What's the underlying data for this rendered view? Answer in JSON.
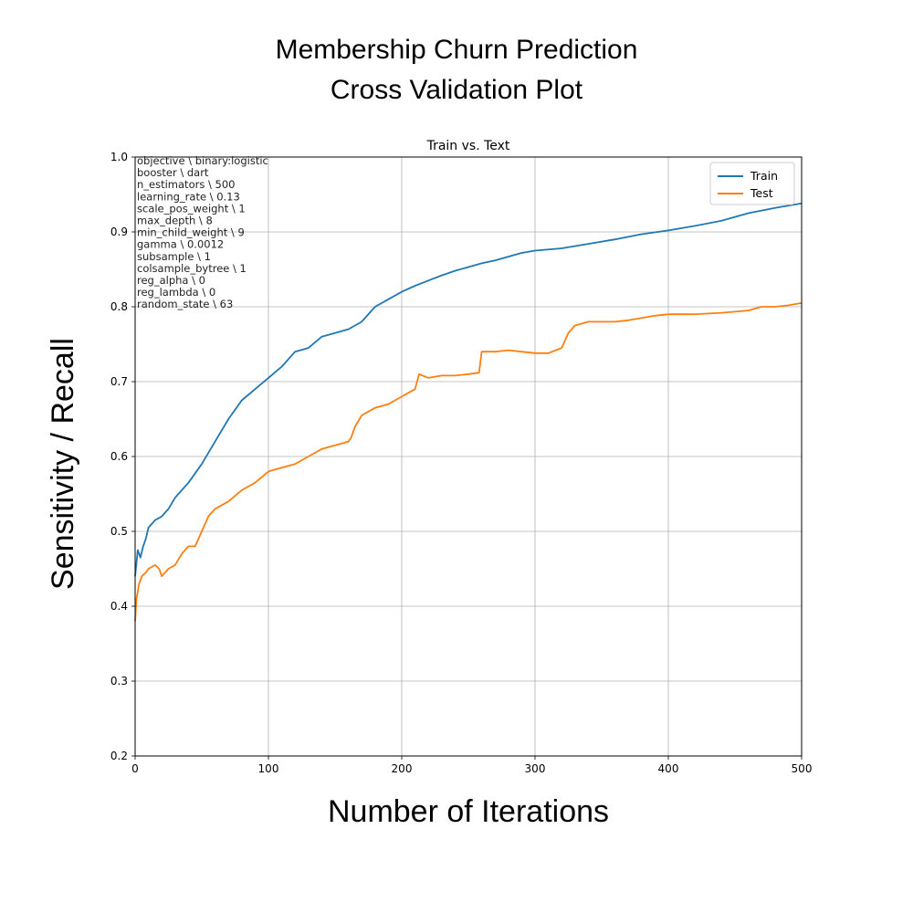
{
  "chart_data": {
    "type": "line",
    "title": "Membership  Churn  Prediction",
    "title_line2": "Cross Validation Plot",
    "subtitle": "Train vs. Text",
    "xlabel": "Number   of   Iterations",
    "ylabel": "Sensitivity  /  Recall",
    "xlim": [
      0,
      500
    ],
    "ylim": [
      0.2,
      1.0
    ],
    "x_ticks": [
      0,
      100,
      200,
      300,
      400,
      500
    ],
    "y_ticks": [
      0.2,
      0.3,
      0.4,
      0.5,
      0.6,
      0.7,
      0.8,
      0.9,
      1.0
    ],
    "y_tick_labels": [
      "0.2",
      "0.3",
      "0.4",
      "0.5",
      "0.6",
      "0.7",
      "0.8",
      "0.9",
      "1.0"
    ],
    "grid": true,
    "legend_position": "top-right",
    "annotation": [
      "objective \\ binary:logistic",
      "booster \\ dart",
      "n_estimators \\ 500",
      "learning_rate \\ 0.13",
      "scale_pos_weight \\ 1",
      "max_depth \\ 8",
      "min_child_weight \\ 9",
      "gamma \\ 0.0012",
      "subsample \\ 1",
      "colsample_bytree \\ 1",
      "reg_alpha \\ 0",
      "reg_lambda \\ 0",
      "random_state \\ 63"
    ],
    "series": [
      {
        "name": "Train",
        "color": "#1f77b4",
        "x": [
          0,
          2,
          4,
          6,
          8,
          10,
          15,
          20,
          25,
          30,
          40,
          50,
          60,
          70,
          80,
          90,
          100,
          110,
          120,
          130,
          140,
          150,
          160,
          170,
          180,
          190,
          200,
          210,
          220,
          230,
          240,
          250,
          260,
          270,
          280,
          290,
          300,
          320,
          340,
          360,
          380,
          400,
          420,
          440,
          460,
          480,
          500
        ],
        "y": [
          0.44,
          0.475,
          0.465,
          0.48,
          0.49,
          0.505,
          0.515,
          0.52,
          0.53,
          0.545,
          0.565,
          0.59,
          0.62,
          0.65,
          0.675,
          0.69,
          0.705,
          0.72,
          0.74,
          0.745,
          0.76,
          0.765,
          0.77,
          0.78,
          0.8,
          0.81,
          0.82,
          0.828,
          0.835,
          0.842,
          0.848,
          0.853,
          0.858,
          0.862,
          0.867,
          0.872,
          0.875,
          0.878,
          0.884,
          0.89,
          0.897,
          0.902,
          0.908,
          0.915,
          0.925,
          0.932,
          0.938
        ]
      },
      {
        "name": "Test",
        "color": "#ff7f0e",
        "x": [
          0,
          1,
          3,
          5,
          8,
          10,
          15,
          18,
          20,
          25,
          30,
          35,
          40,
          45,
          50,
          55,
          60,
          65,
          70,
          80,
          90,
          100,
          110,
          120,
          130,
          140,
          150,
          160,
          162,
          165,
          170,
          180,
          190,
          200,
          210,
          213,
          220,
          230,
          240,
          250,
          258,
          260,
          270,
          280,
          290,
          300,
          310,
          320,
          325,
          330,
          340,
          350,
          360,
          370,
          380,
          390,
          400,
          420,
          440,
          460,
          470,
          480,
          490,
          500
        ],
        "y": [
          0.38,
          0.41,
          0.43,
          0.44,
          0.445,
          0.45,
          0.455,
          0.45,
          0.44,
          0.45,
          0.455,
          0.47,
          0.48,
          0.48,
          0.5,
          0.52,
          0.53,
          0.535,
          0.54,
          0.555,
          0.565,
          0.58,
          0.585,
          0.59,
          0.6,
          0.61,
          0.615,
          0.62,
          0.625,
          0.64,
          0.655,
          0.665,
          0.67,
          0.68,
          0.69,
          0.71,
          0.705,
          0.708,
          0.708,
          0.71,
          0.712,
          0.74,
          0.74,
          0.742,
          0.74,
          0.738,
          0.738,
          0.745,
          0.765,
          0.775,
          0.78,
          0.78,
          0.78,
          0.782,
          0.785,
          0.788,
          0.79,
          0.79,
          0.792,
          0.795,
          0.8,
          0.8,
          0.802,
          0.805
        ]
      }
    ]
  }
}
